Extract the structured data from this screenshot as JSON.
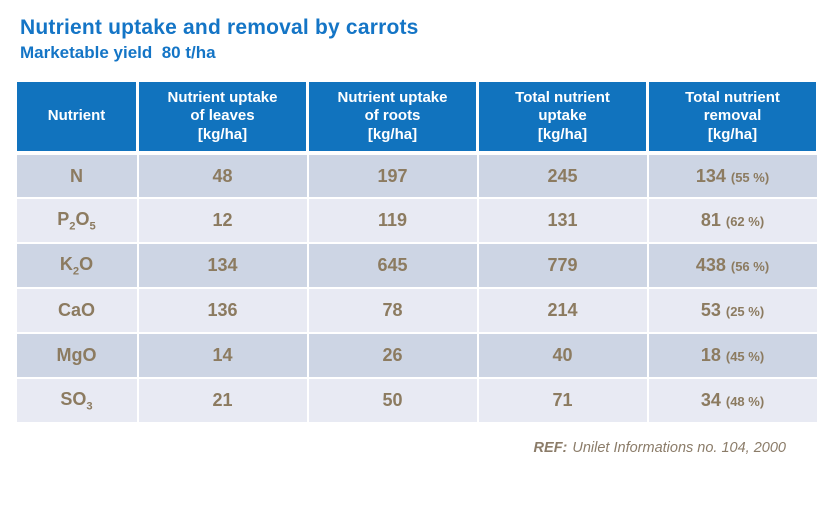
{
  "title": "Nutrient uptake and removal by carrots",
  "subtitle": "Marketable yield  80 t/ha",
  "colors": {
    "title_blue": "#1475C6",
    "header_bg": "#1173BE",
    "row_dark": "#CDD5E4",
    "row_light": "#E8EAF3",
    "data_text": "#8C7B60",
    "footer_text": "#8B7C69"
  },
  "table": {
    "headers": [
      "Nutrient",
      "Nutrient uptake\nof leaves\n[kg/ha]",
      "Nutrient uptake\nof roots\n[kg/ha]",
      "Total nutrient\nuptake\n[kg/ha]",
      "Total nutrient\nremoval\n[kg/ha]"
    ],
    "rows": [
      {
        "formula": "N",
        "leaves": "48",
        "roots": "197",
        "total": "245",
        "removal": "134",
        "removal_pct": "(55 %)"
      },
      {
        "formula": "P2O5",
        "leaves": "12",
        "roots": "119",
        "total": "131",
        "removal": "81",
        "removal_pct": "(62 %)"
      },
      {
        "formula": "K2O",
        "leaves": "134",
        "roots": "645",
        "total": "779",
        "removal": "438",
        "removal_pct": "(56 %)"
      },
      {
        "formula": "CaO",
        "leaves": "136",
        "roots": "78",
        "total": "214",
        "removal": "53",
        "removal_pct": "(25 %)"
      },
      {
        "formula": "MgO",
        "leaves": "14",
        "roots": "26",
        "total": "40",
        "removal": "18",
        "removal_pct": "(45 %)"
      },
      {
        "formula": "SO3",
        "leaves": "21",
        "roots": "50",
        "total": "71",
        "removal": "34",
        "removal_pct": "(48 %)"
      }
    ]
  },
  "footer": {
    "ref_label": "REF:",
    "text": "Unilet Informations no. 104, 2000"
  }
}
